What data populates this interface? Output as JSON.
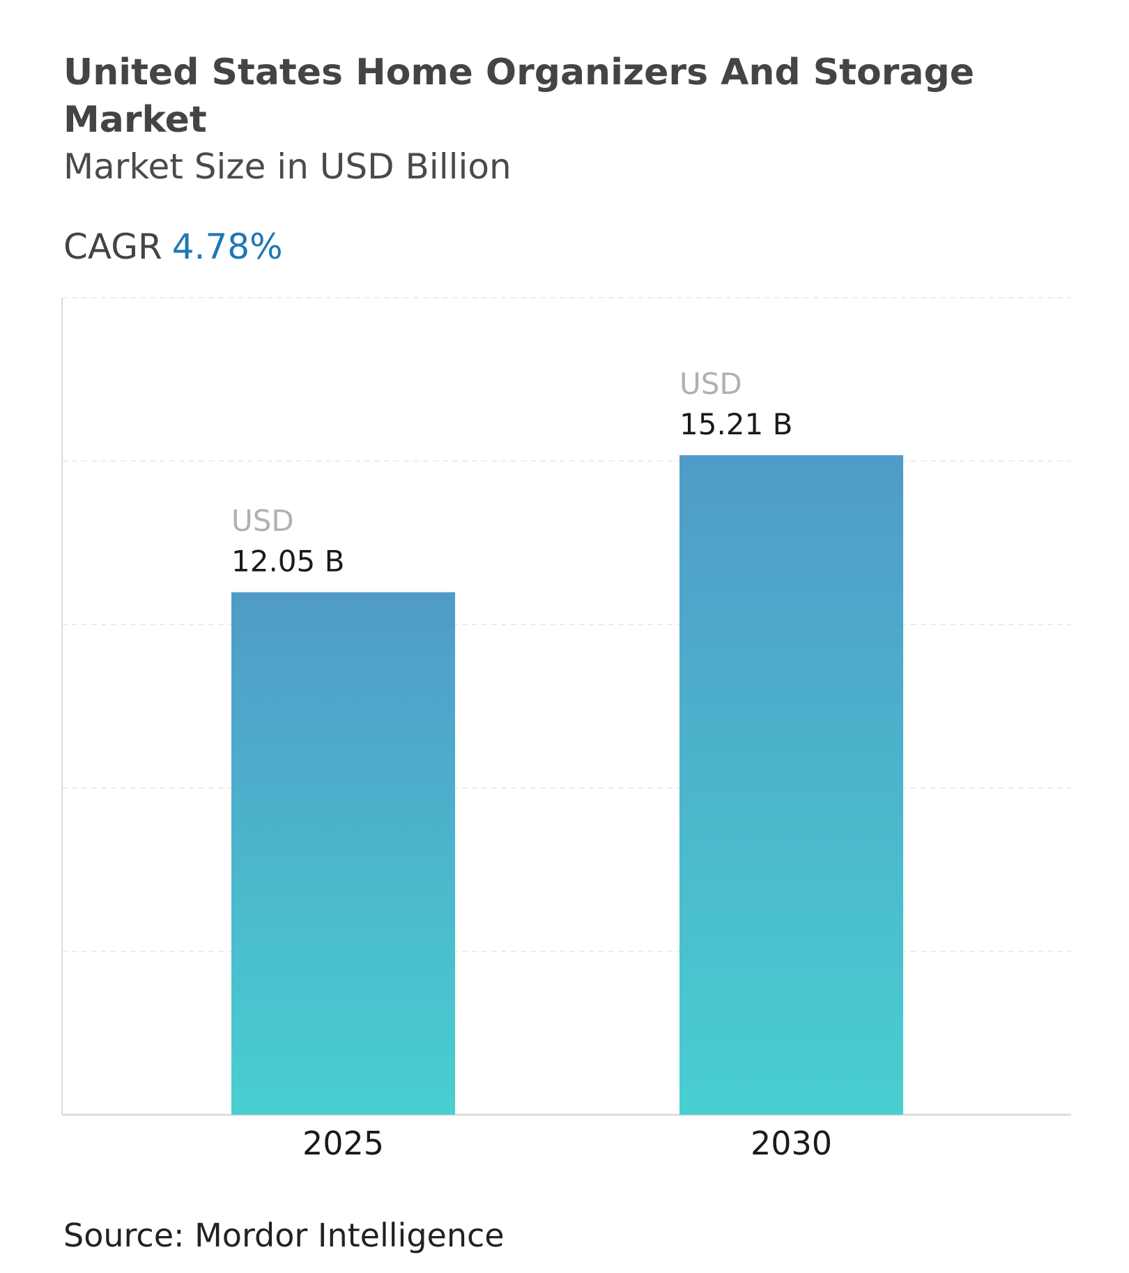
{
  "header": {
    "title": "United States Home Organizers And Storage Market",
    "subtitle": "Market Size in USD Billion",
    "cagr_label": "CAGR",
    "cagr_value": "4.78%"
  },
  "chart_data": {
    "type": "bar",
    "categories": [
      "2025",
      "2030"
    ],
    "values": [
      12.05,
      15.21
    ],
    "data_labels": [
      {
        "prefix": "USD",
        "value": "12.05 B"
      },
      {
        "prefix": "USD",
        "value": "15.21 B"
      }
    ],
    "title": "United States Home Organizers And Storage Market",
    "ylabel": "",
    "xlabel": "",
    "grid": true,
    "colors": {
      "bar_top": "#509bc8",
      "bar_bottom": "#48cfd0",
      "cagr": "#1f77b4"
    }
  },
  "footer": {
    "source": "Source: Mordor Intelligence"
  }
}
